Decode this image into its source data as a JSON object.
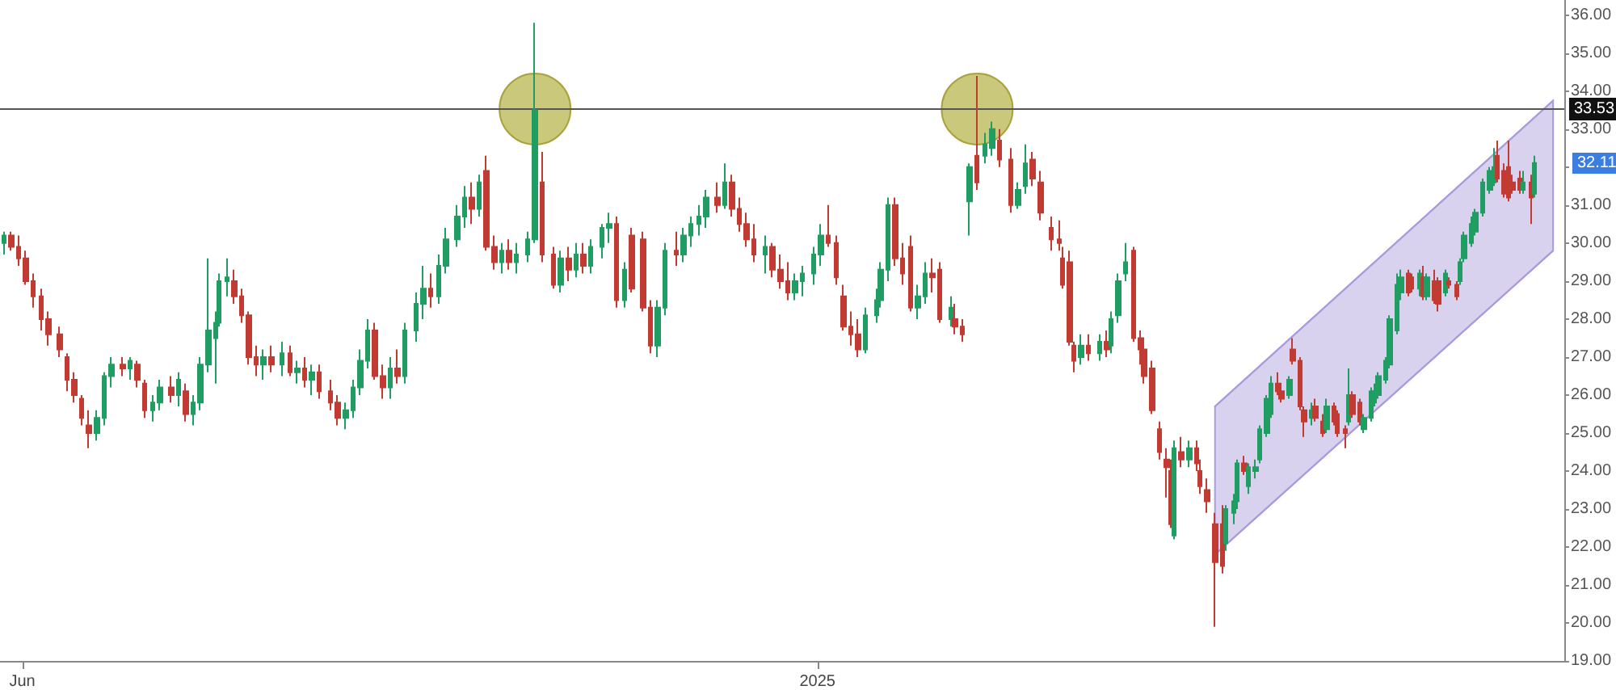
{
  "chart_data": {
    "type": "candlestick",
    "x": [
      "2024-05-27",
      "2024-05-29",
      "2024-05-31",
      "2024-06-02",
      "2024-06-04",
      "2024-06-06",
      "2024-06-08",
      "2024-06-11",
      "2024-06-13",
      "2024-06-15",
      "2024-06-17",
      "2024-06-19",
      "2024-06-21",
      "2024-06-23",
      "2024-06-25",
      "2024-06-28",
      "2024-06-30",
      "2024-07-02",
      "2024-07-04",
      "2024-07-06",
      "2024-07-08",
      "2024-07-11",
      "2024-07-13",
      "2024-07-15",
      "2024-07-17",
      "2024-07-19",
      "2024-07-21",
      "2024-07-23",
      "2024-07-24",
      "2024-07-26",
      "2024-07-28",
      "2024-07-30",
      "2024-08-01",
      "2024-08-03",
      "2024-08-05",
      "2024-08-07",
      "2024-08-10",
      "2024-08-12",
      "2024-08-14",
      "2024-08-16",
      "2024-08-18",
      "2024-08-20",
      "2024-08-23",
      "2024-08-25",
      "2024-08-27",
      "2024-08-29",
      "2024-08-31",
      "2024-09-02",
      "2024-09-04",
      "2024-09-06",
      "2024-09-08",
      "2024-09-10",
      "2024-09-12",
      "2024-09-15",
      "2024-09-17",
      "2024-09-19",
      "2024-09-21",
      "2024-09-23",
      "2024-09-26",
      "2024-09-28",
      "2024-09-30",
      "2024-10-02",
      "2024-10-04",
      "2024-10-06",
      "2024-10-08",
      "2024-10-10",
      "2024-10-12",
      "2024-10-15",
      "2024-10-17",
      "2024-10-19",
      "2024-10-22",
      "2024-10-24",
      "2024-10-26",
      "2024-10-28",
      "2024-10-30",
      "2024-11-01",
      "2024-11-04",
      "2024-11-06",
      "2024-11-08",
      "2024-11-10",
      "2024-11-12",
      "2024-11-15",
      "2024-11-17",
      "2024-11-19",
      "2024-11-21",
      "2024-11-24",
      "2024-11-26",
      "2024-11-28",
      "2024-11-30",
      "2024-12-02",
      "2024-12-05",
      "2024-12-07",
      "2024-12-09",
      "2024-12-11",
      "2024-12-13",
      "2024-12-15",
      "2024-12-18",
      "2024-12-20",
      "2024-12-22",
      "2024-12-24",
      "2024-12-26",
      "2024-12-28",
      "2024-12-31",
      "2025-01-02",
      "2025-01-04",
      "2025-01-06",
      "2025-01-08",
      "2025-01-10",
      "2025-01-12",
      "2025-01-14",
      "2025-01-17",
      "2025-01-18",
      "2025-01-20",
      "2025-01-22",
      "2025-01-24",
      "2025-01-26",
      "2025-01-28",
      "2025-01-30",
      "2025-02-01",
      "2025-02-03",
      "2025-02-06",
      "2025-02-07",
      "2025-02-09",
      "2025-02-11",
      "2025-02-13",
      "2025-02-15",
      "2025-02-17",
      "2025-02-19",
      "2025-02-22",
      "2025-02-24",
      "2025-02-26",
      "2025-02-28",
      "2025-03-02",
      "2025-03-05",
      "2025-03-07",
      "2025-03-08",
      "2025-03-10",
      "2025-03-11",
      "2025-03-13",
      "2025-03-15",
      "2025-03-18",
      "2025-03-20",
      "2025-03-21",
      "2025-03-23",
      "2025-03-25",
      "2025-03-27",
      "2025-03-29",
      "2025-03-30",
      "2025-04-01",
      "2025-04-03",
      "2025-04-05",
      "2025-04-06",
      "2025-04-07",
      "2025-04-09",
      "2025-04-11",
      "2025-04-13",
      "2025-04-14",
      "2025-04-16",
      "2025-04-18",
      "2025-04-20",
      "2025-04-21",
      "2025-04-23",
      "2025-04-24",
      "2025-04-26",
      "2025-04-27",
      "2025-04-29",
      "2025-04-30",
      "2025-05-02",
      "2025-05-03",
      "2025-05-05",
      "2025-05-06",
      "2025-05-08",
      "2025-05-09",
      "2025-05-11",
      "2025-05-12",
      "2025-05-14",
      "2025-05-15",
      "2025-05-17",
      "2025-05-18",
      "2025-05-20",
      "2025-05-21",
      "2025-05-23",
      "2025-05-24",
      "2025-05-25",
      "2025-05-27",
      "2025-05-28",
      "2025-05-30",
      "2025-05-31",
      "2025-06-01",
      "2025-06-03",
      "2025-06-04",
      "2025-06-06",
      "2025-06-07",
      "2025-06-09",
      "2025-06-10",
      "2025-06-12",
      "2025-06-13",
      "2025-06-14",
      "2025-06-16",
      "2025-06-17",
      "2025-06-19",
      "2025-06-20",
      "2025-06-22",
      "2025-06-23",
      "2025-06-24",
      "2025-06-26",
      "2025-06-27",
      "2025-06-29",
      "2025-07-01",
      "2025-07-02",
      "2025-07-03",
      "2025-07-05",
      "2025-07-06",
      "2025-07-07",
      "2025-07-09",
      "2025-07-10",
      "2025-07-12",
      "2025-07-13"
    ],
    "ohlc": [
      [
        30.0,
        30.3,
        29.7,
        30.2
      ],
      [
        30.2,
        30.3,
        29.8,
        29.9
      ],
      [
        29.9,
        30.2,
        29.4,
        29.6
      ],
      [
        29.6,
        29.8,
        28.9,
        29.0
      ],
      [
        29.0,
        29.2,
        28.3,
        28.6
      ],
      [
        28.6,
        28.8,
        27.7,
        28.0
      ],
      [
        28.0,
        28.2,
        27.3,
        27.6
      ],
      [
        27.6,
        27.8,
        27.0,
        27.2
      ],
      [
        27.0,
        27.1,
        26.1,
        26.4
      ],
      [
        26.4,
        26.6,
        25.8,
        26.0
      ],
      [
        25.9,
        26.0,
        25.2,
        25.4
      ],
      [
        25.2,
        25.6,
        24.6,
        25.0
      ],
      [
        25.0,
        25.6,
        24.8,
        25.4
      ],
      [
        25.4,
        26.6,
        25.2,
        26.5
      ],
      [
        26.5,
        27.0,
        26.2,
        26.8
      ],
      [
        26.8,
        27.0,
        26.5,
        26.7
      ],
      [
        26.7,
        27.0,
        26.4,
        26.9
      ],
      [
        26.8,
        26.9,
        26.2,
        26.4
      ],
      [
        26.3,
        26.4,
        25.4,
        25.6
      ],
      [
        25.6,
        26.0,
        25.3,
        25.8
      ],
      [
        25.8,
        26.4,
        25.6,
        26.2
      ],
      [
        26.2,
        26.5,
        25.8,
        26.0
      ],
      [
        26.0,
        26.6,
        25.7,
        26.4
      ],
      [
        26.1,
        26.3,
        25.3,
        25.5
      ],
      [
        25.5,
        26.0,
        25.2,
        25.8
      ],
      [
        25.8,
        27.0,
        25.6,
        26.8
      ],
      [
        26.8,
        29.6,
        26.6,
        27.7
      ],
      [
        27.5,
        28.2,
        26.3,
        27.9
      ],
      [
        27.9,
        29.2,
        27.8,
        29.0
      ],
      [
        29.0,
        29.6,
        28.6,
        29.1
      ],
      [
        29.0,
        29.3,
        28.4,
        28.6
      ],
      [
        28.6,
        28.8,
        27.9,
        28.1
      ],
      [
        28.1,
        28.2,
        26.8,
        27.0
      ],
      [
        27.0,
        27.3,
        26.5,
        26.8
      ],
      [
        26.8,
        27.2,
        26.4,
        27.0
      ],
      [
        27.0,
        27.3,
        26.6,
        26.8
      ],
      [
        26.8,
        27.4,
        26.5,
        27.1
      ],
      [
        27.1,
        27.3,
        26.5,
        26.6
      ],
      [
        26.6,
        26.9,
        26.3,
        26.7
      ],
      [
        26.7,
        27.0,
        26.2,
        26.4
      ],
      [
        26.4,
        26.8,
        26.0,
        26.6
      ],
      [
        26.6,
        26.8,
        25.9,
        26.1
      ],
      [
        26.1,
        26.4,
        25.6,
        25.8
      ],
      [
        25.8,
        26.0,
        25.2,
        25.4
      ],
      [
        25.4,
        25.8,
        25.1,
        25.6
      ],
      [
        25.6,
        26.4,
        25.4,
        26.2
      ],
      [
        26.2,
        27.2,
        26.0,
        26.9
      ],
      [
        26.9,
        28.0,
        26.7,
        27.7
      ],
      [
        27.7,
        27.9,
        26.4,
        26.5
      ],
      [
        26.5,
        26.8,
        25.9,
        26.2
      ],
      [
        26.2,
        27.0,
        25.9,
        26.7
      ],
      [
        26.7,
        27.2,
        26.3,
        26.5
      ],
      [
        26.5,
        27.9,
        26.3,
        27.7
      ],
      [
        27.7,
        28.7,
        27.4,
        28.4
      ],
      [
        28.4,
        29.4,
        28.0,
        28.8
      ],
      [
        28.8,
        29.2,
        28.3,
        28.6
      ],
      [
        28.6,
        29.7,
        28.4,
        29.4
      ],
      [
        29.4,
        30.4,
        29.2,
        30.1
      ],
      [
        30.1,
        31.0,
        29.9,
        30.7
      ],
      [
        30.7,
        31.5,
        30.4,
        31.2
      ],
      [
        31.2,
        31.6,
        30.5,
        30.9
      ],
      [
        30.9,
        31.8,
        30.7,
        31.6
      ],
      [
        31.9,
        32.3,
        29.8,
        29.9
      ],
      [
        29.9,
        30.2,
        29.3,
        29.5
      ],
      [
        29.5,
        30.0,
        29.2,
        29.8
      ],
      [
        29.8,
        30.1,
        29.3,
        29.5
      ],
      [
        29.5,
        30.0,
        29.2,
        29.7
      ],
      [
        29.7,
        30.3,
        29.5,
        30.1
      ],
      [
        30.1,
        35.8,
        30.0,
        33.5
      ],
      [
        31.6,
        32.4,
        29.5,
        29.7
      ],
      [
        29.7,
        29.9,
        28.8,
        28.9
      ],
      [
        28.9,
        29.8,
        28.7,
        29.6
      ],
      [
        29.6,
        29.9,
        29.0,
        29.3
      ],
      [
        29.3,
        30.0,
        29.1,
        29.7
      ],
      [
        29.7,
        30.0,
        29.2,
        29.4
      ],
      [
        29.4,
        30.1,
        29.2,
        29.9
      ],
      [
        29.9,
        30.5,
        29.6,
        30.4
      ],
      [
        30.4,
        30.8,
        30.0,
        30.5
      ],
      [
        30.5,
        30.7,
        28.3,
        28.5
      ],
      [
        28.5,
        29.5,
        28.3,
        29.3
      ],
      [
        30.2,
        30.4,
        28.7,
        28.8
      ],
      [
        30.1,
        30.3,
        28.2,
        28.3
      ],
      [
        28.3,
        28.5,
        27.1,
        27.3
      ],
      [
        27.3,
        28.5,
        27.0,
        28.3
      ],
      [
        28.3,
        30.0,
        28.1,
        29.8
      ],
      [
        29.8,
        30.3,
        29.4,
        29.7
      ],
      [
        29.7,
        30.4,
        29.5,
        30.2
      ],
      [
        30.2,
        30.7,
        29.9,
        30.5
      ],
      [
        30.5,
        31.0,
        30.2,
        30.7
      ],
      [
        30.7,
        31.4,
        30.4,
        31.2
      ],
      [
        31.2,
        31.6,
        30.8,
        31.0
      ],
      [
        31.0,
        32.1,
        30.9,
        31.6
      ],
      [
        31.6,
        31.8,
        30.7,
        30.9
      ],
      [
        30.9,
        31.2,
        30.3,
        30.5
      ],
      [
        30.5,
        30.8,
        29.9,
        30.1
      ],
      [
        30.1,
        30.5,
        29.5,
        29.7
      ],
      [
        29.7,
        30.2,
        29.2,
        29.9
      ],
      [
        29.9,
        30.0,
        29.1,
        29.3
      ],
      [
        29.3,
        29.7,
        28.8,
        29.0
      ],
      [
        29.0,
        29.5,
        28.5,
        28.7
      ],
      [
        28.7,
        29.2,
        28.5,
        29.0
      ],
      [
        29.0,
        29.4,
        28.6,
        29.2
      ],
      [
        29.2,
        29.9,
        28.9,
        29.7
      ],
      [
        29.7,
        30.5,
        29.4,
        30.2
      ],
      [
        30.2,
        31.0,
        29.9,
        30.0
      ],
      [
        30.0,
        30.2,
        28.9,
        29.1
      ],
      [
        28.6,
        28.9,
        27.7,
        27.8
      ],
      [
        27.8,
        28.2,
        27.3,
        27.6
      ],
      [
        27.6,
        28.0,
        27.0,
        27.2
      ],
      [
        27.2,
        28.3,
        27.1,
        28.1
      ],
      [
        28.1,
        28.8,
        27.9,
        28.5
      ],
      [
        28.5,
        29.5,
        28.3,
        29.3
      ],
      [
        29.3,
        31.2,
        29.0,
        31.0
      ],
      [
        31.0,
        31.2,
        29.4,
        29.6
      ],
      [
        29.6,
        30.0,
        28.9,
        29.2
      ],
      [
        29.9,
        30.2,
        28.2,
        28.3
      ],
      [
        28.3,
        28.9,
        28.0,
        28.6
      ],
      [
        28.6,
        29.5,
        28.4,
        29.2
      ],
      [
        29.2,
        29.6,
        28.7,
        29.1
      ],
      [
        29.3,
        29.5,
        27.9,
        28.0
      ],
      [
        28.0,
        28.6,
        27.8,
        28.3
      ],
      [
        28.0,
        28.4,
        27.6,
        27.8
      ],
      [
        27.8,
        28.0,
        27.4,
        27.6
      ],
      [
        31.1,
        32.1,
        30.2,
        32.0
      ],
      [
        32.3,
        34.4,
        31.4,
        31.6
      ],
      [
        32.3,
        32.9,
        32.1,
        32.6
      ],
      [
        32.5,
        33.2,
        32.3,
        33.0
      ],
      [
        32.7,
        33.0,
        32.0,
        32.2
      ],
      [
        32.2,
        32.5,
        30.8,
        31.0
      ],
      [
        31.0,
        31.6,
        30.9,
        31.4
      ],
      [
        31.5,
        32.6,
        31.3,
        32.1
      ],
      [
        32.2,
        32.4,
        31.5,
        31.7
      ],
      [
        31.6,
        31.9,
        30.6,
        30.8
      ],
      [
        30.4,
        30.7,
        29.8,
        30.1
      ],
      [
        30.1,
        30.6,
        29.8,
        30.0
      ],
      [
        29.6,
        29.9,
        28.8,
        28.9
      ],
      [
        29.5,
        29.8,
        27.3,
        27.4
      ],
      [
        27.3,
        27.4,
        26.6,
        26.9
      ],
      [
        27.0,
        27.6,
        26.8,
        27.3
      ],
      [
        27.3,
        27.6,
        26.9,
        27.1
      ],
      [
        27.1,
        27.6,
        26.9,
        27.4
      ],
      [
        27.4,
        27.7,
        27.0,
        27.2
      ],
      [
        27.3,
        28.2,
        27.1,
        28.0
      ],
      [
        28.1,
        29.2,
        27.9,
        29.0
      ],
      [
        29.2,
        30.0,
        29.0,
        29.5
      ],
      [
        29.8,
        29.9,
        27.4,
        27.5
      ],
      [
        27.5,
        27.7,
        26.8,
        27.2
      ],
      [
        27.2,
        27.4,
        26.3,
        26.5
      ],
      [
        26.7,
        26.9,
        25.5,
        25.6
      ],
      [
        25.1,
        25.3,
        24.3,
        24.5
      ],
      [
        24.3,
        24.6,
        23.3,
        24.1
      ],
      [
        24.0,
        24.3,
        22.5,
        22.6
      ],
      [
        22.3,
        24.8,
        22.2,
        24.6
      ],
      [
        24.5,
        24.9,
        24.1,
        24.3
      ],
      [
        24.3,
        24.8,
        24.1,
        24.6
      ],
      [
        24.6,
        24.8,
        24.0,
        24.2
      ],
      [
        24.0,
        24.3,
        23.4,
        23.6
      ],
      [
        23.5,
        23.8,
        22.9,
        23.2
      ],
      [
        22.6,
        22.9,
        19.9,
        21.6
      ],
      [
        22.6,
        23.1,
        21.3,
        21.5
      ],
      [
        22.1,
        23.1,
        21.9,
        23.0
      ],
      [
        22.9,
        23.4,
        22.6,
        23.2
      ],
      [
        23.2,
        24.3,
        23.0,
        24.2
      ],
      [
        24.2,
        24.4,
        23.9,
        24.0
      ],
      [
        23.6,
        24.2,
        23.4,
        24.1
      ],
      [
        24.0,
        24.3,
        23.8,
        24.1
      ],
      [
        24.3,
        25.2,
        24.2,
        25.1
      ],
      [
        25.0,
        26.0,
        24.9,
        25.9
      ],
      [
        25.5,
        26.5,
        25.4,
        26.3
      ],
      [
        26.3,
        26.6,
        26.0,
        26.1
      ],
      [
        26.1,
        26.3,
        25.8,
        25.9
      ],
      [
        26.0,
        26.5,
        25.9,
        26.4
      ],
      [
        27.2,
        27.5,
        26.8,
        26.9
      ],
      [
        26.9,
        27.0,
        25.6,
        25.7
      ],
      [
        25.6,
        25.7,
        24.9,
        25.3
      ],
      [
        25.4,
        25.8,
        25.2,
        25.6
      ],
      [
        25.7,
        25.9,
        25.3,
        25.4
      ],
      [
        25.3,
        25.5,
        24.9,
        25.0
      ],
      [
        25.1,
        25.9,
        25.0,
        25.7
      ],
      [
        25.7,
        25.8,
        25.2,
        25.3
      ],
      [
        25.5,
        25.6,
        24.9,
        25.0
      ],
      [
        25.1,
        25.2,
        24.6,
        25.0
      ],
      [
        25.3,
        26.7,
        25.2,
        26.0
      ],
      [
        26.0,
        26.1,
        25.4,
        25.5
      ],
      [
        25.8,
        25.9,
        25.2,
        25.3
      ],
      [
        25.1,
        25.5,
        25.0,
        25.4
      ],
      [
        25.4,
        26.2,
        25.3,
        26.1
      ],
      [
        25.8,
        26.3,
        25.7,
        26.1
      ],
      [
        26.0,
        26.6,
        25.9,
        26.5
      ],
      [
        26.4,
        27.0,
        26.3,
        26.9
      ],
      [
        26.8,
        28.1,
        26.7,
        28.0
      ],
      [
        27.7,
        29.2,
        27.6,
        28.9
      ],
      [
        28.7,
        29.3,
        28.5,
        29.1
      ],
      [
        29.2,
        29.3,
        28.6,
        28.7
      ],
      [
        29.1,
        29.2,
        28.7,
        28.8
      ],
      [
        28.8,
        29.3,
        28.6,
        29.2
      ],
      [
        29.1,
        29.4,
        28.5,
        28.6
      ],
      [
        28.6,
        29.2,
        28.5,
        29.1
      ],
      [
        29.0,
        29.3,
        28.4,
        28.5
      ],
      [
        29.0,
        29.1,
        28.2,
        28.4
      ],
      [
        28.7,
        29.3,
        28.6,
        29.2
      ],
      [
        29.0,
        29.1,
        28.8,
        28.9
      ],
      [
        28.9,
        29.0,
        28.5,
        28.6
      ],
      [
        29.0,
        29.6,
        28.9,
        29.5
      ],
      [
        29.6,
        30.3,
        29.5,
        30.2
      ],
      [
        30.0,
        30.7,
        29.9,
        30.5
      ],
      [
        30.3,
        30.9,
        30.2,
        30.8
      ],
      [
        30.8,
        31.7,
        30.7,
        31.6
      ],
      [
        31.4,
        32.0,
        31.3,
        31.9
      ],
      [
        31.6,
        32.5,
        31.5,
        32.0
      ],
      [
        32.3,
        32.7,
        31.6,
        31.7
      ],
      [
        31.9,
        32.1,
        31.2,
        31.3
      ],
      [
        32.0,
        32.7,
        31.1,
        31.2
      ],
      [
        31.6,
        31.8,
        31.3,
        31.4
      ],
      [
        31.7,
        31.9,
        31.3,
        31.4
      ],
      [
        31.4,
        31.9,
        31.3,
        31.6
      ],
      [
        31.6,
        31.8,
        30.5,
        31.2
      ],
      [
        31.3,
        32.3,
        31.2,
        32.11
      ]
    ],
    "colors": [
      "#1f9d62",
      "#c23b33",
      "#c23b33",
      "#c23b33",
      "#c23b33",
      "#c23b33",
      "#c23b33",
      "#c23b33",
      "#c23b33",
      "#c23b33",
      "#c23b33",
      "#c23b33",
      "#1f9d62",
      "#1f9d62",
      "#1f9d62",
      "#c23b33",
      "#1f9d62",
      "#c23b33",
      "#c23b33",
      "#1f9d62",
      "#1f9d62",
      "#c23b33",
      "#1f9d62",
      "#c23b33",
      "#1f9d62",
      "#1f9d62",
      "#1f9d62",
      "#1f9d62",
      "#1f9d62",
      "#1f9d62",
      "#c23b33",
      "#c23b33",
      "#c23b33",
      "#c23b33",
      "#1f9d62",
      "#c23b33",
      "#1f9d62",
      "#c23b33",
      "#1f9d62",
      "#c23b33",
      "#1f9d62",
      "#c23b33",
      "#c23b33",
      "#c23b33",
      "#1f9d62",
      "#1f9d62",
      "#1f9d62",
      "#1f9d62",
      "#c23b33",
      "#c23b33",
      "#1f9d62",
      "#c23b33",
      "#1f9d62",
      "#1f9d62",
      "#1f9d62",
      "#c23b33",
      "#1f9d62",
      "#1f9d62",
      "#1f9d62",
      "#1f9d62",
      "#c23b33",
      "#1f9d62",
      "#c23b33",
      "#c23b33",
      "#1f9d62",
      "#c23b33",
      "#1f9d62",
      "#1f9d62",
      "#1f9d62",
      "#c23b33",
      "#c23b33",
      "#1f9d62",
      "#c23b33",
      "#1f9d62",
      "#c23b33",
      "#1f9d62",
      "#1f9d62",
      "#1f9d62",
      "#c23b33",
      "#1f9d62",
      "#c23b33",
      "#c23b33",
      "#c23b33",
      "#1f9d62",
      "#1f9d62",
      "#c23b33",
      "#1f9d62",
      "#1f9d62",
      "#1f9d62",
      "#1f9d62",
      "#c23b33",
      "#1f9d62",
      "#c23b33",
      "#c23b33",
      "#c23b33",
      "#c23b33",
      "#1f9d62",
      "#c23b33",
      "#c23b33",
      "#c23b33",
      "#1f9d62",
      "#1f9d62",
      "#1f9d62",
      "#1f9d62",
      "#c23b33",
      "#c23b33",
      "#c23b33",
      "#c23b33",
      "#c23b33",
      "#1f9d62",
      "#1f9d62",
      "#1f9d62",
      "#1f9d62",
      "#c23b33",
      "#c23b33",
      "#c23b33",
      "#1f9d62",
      "#1f9d62",
      "#c23b33",
      "#c23b33",
      "#1f9d62",
      "#c23b33",
      "#c23b33",
      "#1f9d62",
      "#c23b33",
      "#1f9d62",
      "#1f9d62",
      "#c23b33",
      "#c23b33",
      "#1f9d62",
      "#1f9d62",
      "#c23b33",
      "#c23b33",
      "#c23b33",
      "#c23b33",
      "#c23b33",
      "#c23b33",
      "#c23b33",
      "#1f9d62",
      "#c23b33",
      "#1f9d62",
      "#c23b33",
      "#1f9d62",
      "#1f9d62",
      "#1f9d62",
      "#c23b33",
      "#c23b33",
      "#c23b33",
      "#c23b33",
      "#c23b33",
      "#c23b33",
      "#c23b33",
      "#1f9d62",
      "#c23b33",
      "#1f9d62",
      "#c23b33",
      "#c23b33",
      "#c23b33",
      "#c23b33",
      "#c23b33",
      "#1f9d62",
      "#1f9d62",
      "#1f9d62",
      "#c23b33",
      "#1f9d62",
      "#1f9d62",
      "#1f9d62",
      "#1f9d62",
      "#1f9d62",
      "#c23b33",
      "#c23b33",
      "#1f9d62",
      "#c23b33",
      "#c23b33",
      "#c23b33",
      "#1f9d62",
      "#c23b33",
      "#c23b33",
      "#1f9d62",
      "#c23b33",
      "#c23b33",
      "#c23b33",
      "#1f9d62",
      "#c23b33",
      "#c23b33",
      "#1f9d62",
      "#1f9d62",
      "#1f9d62",
      "#1f9d62",
      "#1f9d62",
      "#1f9d62",
      "#1f9d62",
      "#1f9d62",
      "#c23b33",
      "#c23b33",
      "#1f9d62",
      "#c23b33",
      "#1f9d62",
      "#c23b33",
      "#c23b33",
      "#1f9d62",
      "#c23b33",
      "#c23b33",
      "#1f9d62",
      "#1f9d62",
      "#1f9d62",
      "#1f9d62",
      "#1f9d62",
      "#1f9d62",
      "#1f9d62",
      "#c23b33",
      "#c23b33",
      "#c23b33",
      "#c23b33",
      "#c23b33",
      "#1f9d62",
      "#c23b33",
      "#1f9d62"
    ],
    "series": [
      {
        "type": "line",
        "x": [
          "2025-04-18",
          "2025-07-18"
        ],
        "values": [
          25.7,
          33.75
        ],
        "color": "#a99bdc"
      },
      {
        "type": "line",
        "x": [
          "2025-04-18",
          "2025-07-18"
        ],
        "values": [
          21.8,
          29.8
        ],
        "color": "#a99bdc"
      }
    ],
    "marker": "none",
    "xlim": [
      "2024-05-26",
      "2025-07-21"
    ],
    "xticks": [
      {
        "value": "2024-06-01",
        "label": "Jun"
      },
      {
        "value": "2025-01-01",
        "label": "2025"
      }
    ],
    "ylim": [
      19,
      36.4
    ],
    "yticks": [
      {
        "value": 19,
        "label": "19.00"
      },
      {
        "value": 20,
        "label": "20.00"
      },
      {
        "value": 21,
        "label": "21.00"
      },
      {
        "value": 22,
        "label": "22.00"
      },
      {
        "value": 23,
        "label": "23.00"
      },
      {
        "value": 24,
        "label": "24.00"
      },
      {
        "value": 25,
        "label": "25.00"
      },
      {
        "value": 26,
        "label": "26.00"
      },
      {
        "value": 27,
        "label": "27.00"
      },
      {
        "value": 28,
        "label": "28.00"
      },
      {
        "value": 29,
        "label": "29.00"
      },
      {
        "value": 30,
        "label": "30.00"
      },
      {
        "value": 31,
        "label": "31.00"
      },
      {
        "value": 32,
        "label": null
      },
      {
        "value": 33,
        "label": "33.00"
      },
      {
        "value": 34,
        "label": "34.00"
      },
      {
        "value": 35,
        "label": "35.00"
      },
      {
        "value": 36,
        "label": "36.00"
      }
    ],
    "ref_lines": [
      {
        "axis": "y",
        "value": 33.53,
        "label": "33.53",
        "color": "#555555"
      }
    ],
    "annotations": [
      {
        "text": "32.11",
        "x": "2025-07-13",
        "y": 32.11
      }
    ]
  }
}
